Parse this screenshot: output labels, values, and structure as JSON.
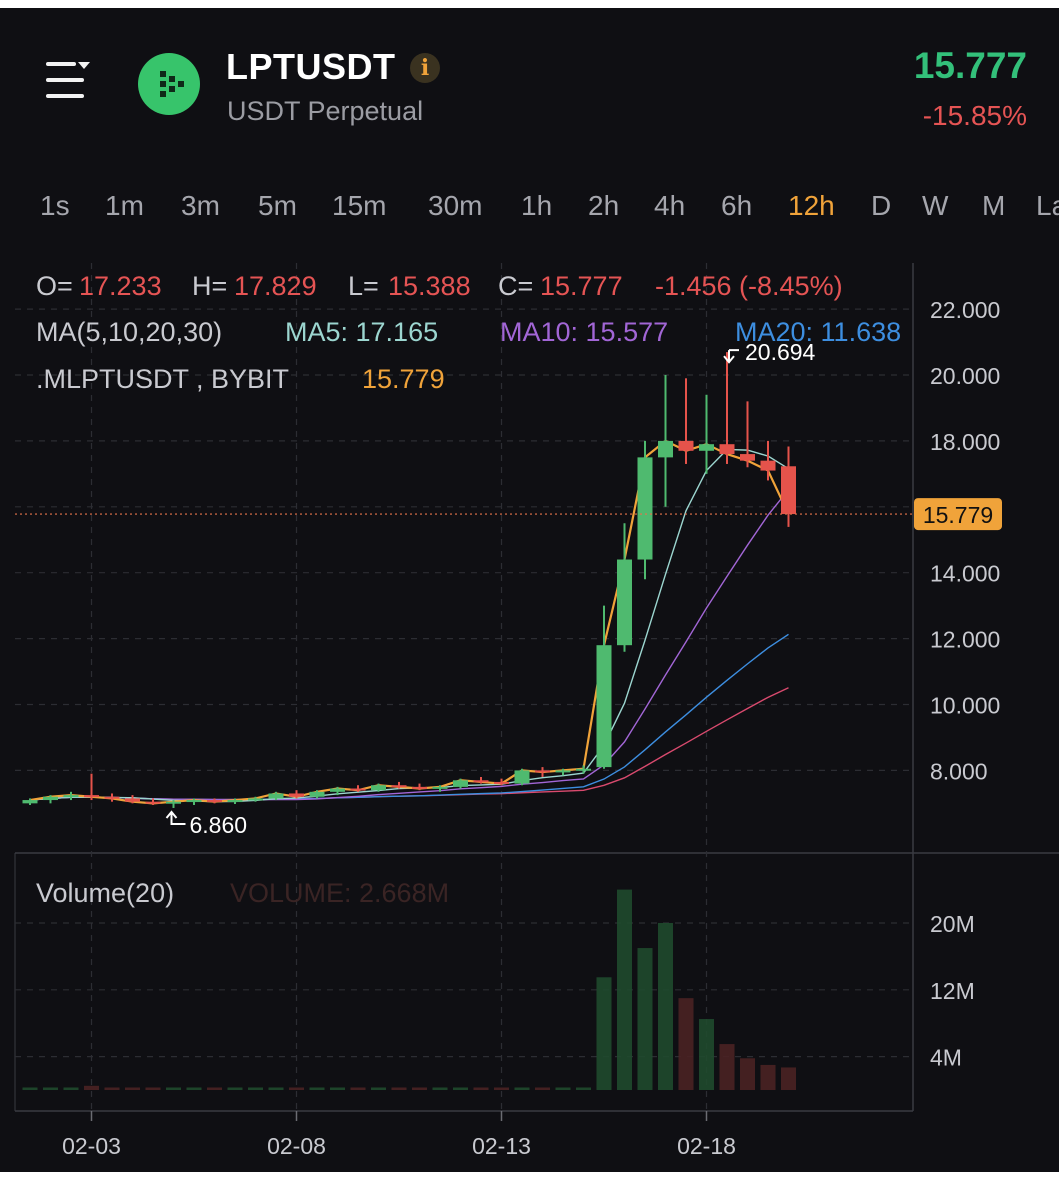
{
  "header": {
    "symbol": "LPTUSDT",
    "subtitle": "USDT Perpetual",
    "price": "15.777",
    "change": "-15.85%",
    "logo_icon": "lpt-coin-icon",
    "info_icon": "i"
  },
  "timeframes": [
    {
      "label": "1s",
      "active": false
    },
    {
      "label": "1m",
      "active": false
    },
    {
      "label": "3m",
      "active": false
    },
    {
      "label": "5m",
      "active": false
    },
    {
      "label": "15m",
      "active": false
    },
    {
      "label": "30m",
      "active": false
    },
    {
      "label": "1h",
      "active": false
    },
    {
      "label": "2h",
      "active": false
    },
    {
      "label": "4h",
      "active": false
    },
    {
      "label": "6h",
      "active": false
    },
    {
      "label": "12h",
      "active": true
    },
    {
      "label": "D",
      "active": false
    },
    {
      "label": "W",
      "active": false
    },
    {
      "label": "M",
      "active": false
    },
    {
      "label": "La",
      "active": false
    }
  ],
  "legend": {
    "o_label": "O=",
    "o_value": "17.233",
    "h_label": "H=",
    "h_value": "17.829",
    "l_label": "L=",
    "l_value": "15.388",
    "c_label": "C=",
    "c_value": "15.777",
    "change": "-1.456 (-8.45%)",
    "ma_title": "MA(5,10,20,30)",
    "ma5": "MA5: 17.165",
    "ma10": "MA10: 15.577",
    "ma20": "MA20: 11.638",
    "index_label": ".MLPTUSDT , BYBIT",
    "index_value": "15.779",
    "volume_title": "Volume(20)",
    "volume_value": "VOLUME: 2.668M"
  },
  "colors": {
    "up": "#4fba6f",
    "down": "#e5534b",
    "ma5": "#f0a33a",
    "ma10": "#9cd6d0",
    "ma20": "#a266d6",
    "ma30_a": "#3d8ee0",
    "ma30_b": "#d94a6e",
    "accent": "#f0a33a"
  },
  "chart_data": {
    "type": "candlestick",
    "price_axis_ticks": [
      "22.000",
      "20.000",
      "18.000",
      "16.000",
      "14.000",
      "12.000",
      "10.000",
      "8.000"
    ],
    "price_axis_values": [
      22,
      20,
      18,
      16,
      14,
      12,
      10,
      8
    ],
    "volume_axis_ticks": [
      "20M",
      "12M",
      "4M"
    ],
    "volume_axis_values": [
      20,
      12,
      4
    ],
    "x_tick_labels": [
      "02-03",
      "02-08",
      "02-13",
      "02-18"
    ],
    "x_tick_index": [
      3,
      13,
      23,
      33
    ],
    "current_price_label": "15.779",
    "current_price": 15.779,
    "max_label": "20.694",
    "max_value": 20.694,
    "max_index": 34,
    "min_label": "6.860",
    "min_value": 6.86,
    "min_index": 7,
    "candles": [
      [
        7.0,
        7.15,
        6.95,
        7.1,
        0.3
      ],
      [
        7.1,
        7.25,
        7.0,
        7.2,
        0.3
      ],
      [
        7.2,
        7.35,
        7.1,
        7.25,
        0.3
      ],
      [
        7.25,
        7.9,
        7.1,
        7.2,
        0.5
      ],
      [
        7.2,
        7.3,
        7.05,
        7.15,
        0.3
      ],
      [
        7.15,
        7.25,
        7.0,
        7.05,
        0.3
      ],
      [
        7.05,
        7.15,
        6.95,
        7.0,
        0.3
      ],
      [
        7.0,
        7.1,
        6.86,
        7.05,
        0.3
      ],
      [
        7.05,
        7.15,
        6.95,
        7.1,
        0.3
      ],
      [
        7.1,
        7.15,
        7.0,
        7.05,
        0.3
      ],
      [
        7.05,
        7.15,
        6.98,
        7.1,
        0.3
      ],
      [
        7.1,
        7.2,
        7.05,
        7.15,
        0.3
      ],
      [
        7.15,
        7.35,
        7.1,
        7.3,
        0.3
      ],
      [
        7.3,
        7.4,
        7.15,
        7.2,
        0.3
      ],
      [
        7.2,
        7.4,
        7.15,
        7.35,
        0.3
      ],
      [
        7.35,
        7.5,
        7.25,
        7.45,
        0.3
      ],
      [
        7.45,
        7.55,
        7.35,
        7.4,
        0.3
      ],
      [
        7.4,
        7.6,
        7.35,
        7.55,
        0.3
      ],
      [
        7.55,
        7.65,
        7.45,
        7.5,
        0.3
      ],
      [
        7.5,
        7.6,
        7.4,
        7.45,
        0.3
      ],
      [
        7.45,
        7.55,
        7.35,
        7.5,
        0.3
      ],
      [
        7.5,
        7.75,
        7.45,
        7.7,
        0.3
      ],
      [
        7.7,
        7.8,
        7.6,
        7.65,
        0.3
      ],
      [
        7.65,
        7.75,
        7.55,
        7.6,
        0.3
      ],
      [
        7.6,
        8.05,
        7.55,
        8.0,
        0.3
      ],
      [
        8.0,
        8.1,
        7.8,
        7.95,
        0.3
      ],
      [
        7.95,
        8.05,
        7.85,
        8.0,
        0.3
      ],
      [
        8.0,
        8.15,
        7.9,
        8.05,
        0.3
      ],
      [
        8.1,
        13.0,
        8.05,
        11.8,
        13.5
      ],
      [
        11.8,
        15.5,
        11.6,
        14.4,
        24
      ],
      [
        14.4,
        18.0,
        13.8,
        17.5,
        17
      ],
      [
        17.5,
        20.0,
        16.0,
        18.0,
        20
      ],
      [
        18.0,
        19.9,
        17.3,
        17.7,
        11
      ],
      [
        17.7,
        19.4,
        17.0,
        17.9,
        8.5
      ],
      [
        17.9,
        20.694,
        17.3,
        17.6,
        5.5
      ],
      [
        17.6,
        19.2,
        17.2,
        17.4,
        3.8
      ],
      [
        17.4,
        18.0,
        16.8,
        17.1,
        3.0
      ],
      [
        17.23,
        17.83,
        15.39,
        15.78,
        2.7
      ]
    ]
  }
}
